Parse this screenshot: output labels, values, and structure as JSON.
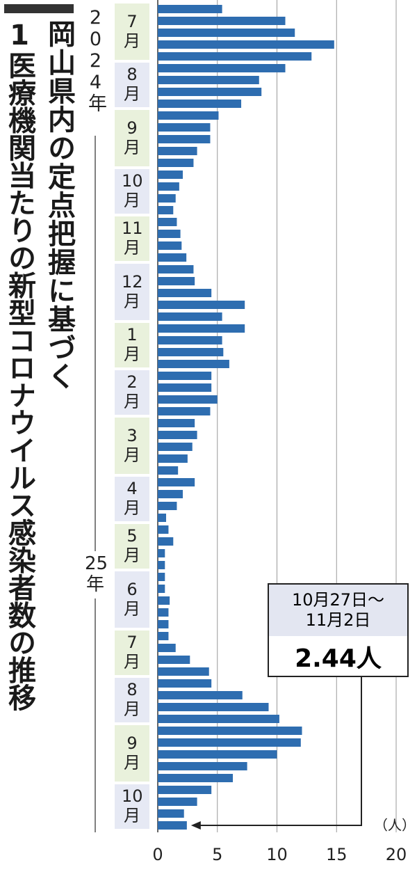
{
  "chart_data": {
    "type": "bar",
    "orientation": "horizontal",
    "title_lines": [
      "岡山県内の定点把握に基づく",
      "1医療機関当たりの新型コロナウイルス感染者数の推移"
    ],
    "x_unit": "（人）",
    "year_labels": [
      "2024年",
      "25年"
    ],
    "categories": [
      "7月",
      null,
      null,
      null,
      null,
      "8月",
      null,
      null,
      null,
      "9月",
      null,
      null,
      null,
      null,
      "10月",
      null,
      null,
      null,
      "11月",
      null,
      null,
      null,
      "12月",
      null,
      null,
      null,
      null,
      "1月",
      null,
      null,
      null,
      "2月",
      null,
      null,
      null,
      "3月",
      null,
      null,
      null,
      null,
      "4月",
      null,
      null,
      null,
      "5月",
      null,
      null,
      null,
      "6月",
      null,
      null,
      null,
      null,
      "7月",
      null,
      null,
      null,
      "8月",
      null,
      null,
      null,
      "9月",
      null,
      null,
      null,
      null,
      "10月",
      null,
      null,
      null
    ],
    "values": [
      5.4,
      10.7,
      11.5,
      14.8,
      12.9,
      10.7,
      8.5,
      8.7,
      7.0,
      5.1,
      4.4,
      4.4,
      3.3,
      3.0,
      2.1,
      1.8,
      1.5,
      1.3,
      1.6,
      1.9,
      2.0,
      2.4,
      3.0,
      3.1,
      4.5,
      7.3,
      5.4,
      7.3,
      5.4,
      5.5,
      6.0,
      4.5,
      4.5,
      5.0,
      4.4,
      3.1,
      3.3,
      2.9,
      2.5,
      1.7,
      3.1,
      2.1,
      1.6,
      0.7,
      0.9,
      1.3,
      0.6,
      0.6,
      0.6,
      0.6,
      1.0,
      0.9,
      0.9,
      0.9,
      1.5,
      2.7,
      4.3,
      4.5,
      7.1,
      9.3,
      10.2,
      12.1,
      12.0,
      10.0,
      7.5,
      6.3,
      4.5,
      3.3,
      2.2,
      2.44
    ],
    "value_labels": [
      null,
      null,
      null,
      null,
      null,
      null,
      null,
      null,
      null,
      null,
      null,
      null,
      null,
      null,
      null,
      null,
      null,
      null,
      null,
      null,
      null,
      null,
      null,
      null,
      null,
      null,
      null,
      null,
      null,
      null,
      null,
      null,
      null,
      null,
      null,
      null,
      null,
      null,
      null,
      null,
      null,
      null,
      null,
      null,
      null,
      null,
      null,
      null,
      null,
      null,
      null,
      null,
      null,
      null,
      null,
      null,
      null,
      null,
      null,
      null,
      null,
      null,
      null,
      null,
      null,
      null,
      null,
      null,
      null,
      "2.44人"
    ],
    "annotation_period_lines": [
      "10月27日～",
      "11月2日"
    ],
    "color": "#2e6db0",
    "month_label_colors": [
      "#e9f1dc",
      "#e6e9f4"
    ],
    "xlim": [
      0,
      20
    ],
    "xticks": [
      0,
      5,
      10,
      15,
      20
    ],
    "grid": true
  }
}
